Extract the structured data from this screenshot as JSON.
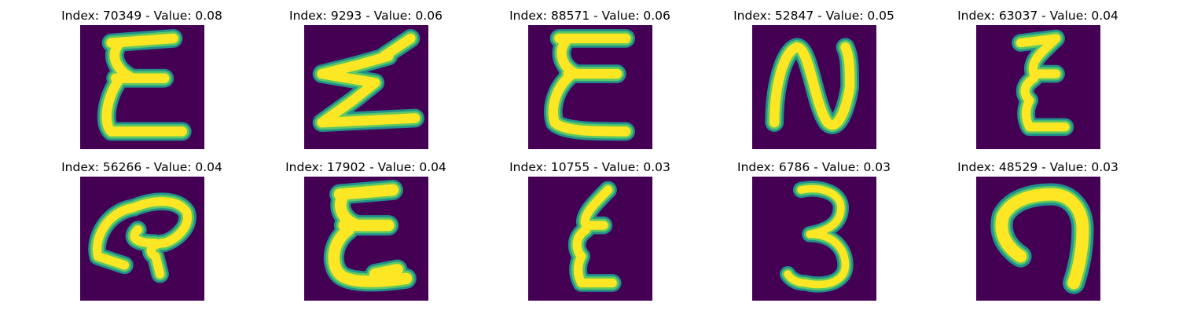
{
  "colors": {
    "background": "#440154",
    "stroke_outer": "#21918c",
    "stroke_mid": "#5ec962",
    "stroke_inner": "#fde725"
  },
  "panels": [
    {
      "title": "Index: 70349 - Value: 0.08",
      "glyph": "epsilon-tall-glyph"
    },
    {
      "title": "Index: 9293 - Value: 0.06",
      "glyph": "zigzag-z-glyph"
    },
    {
      "title": "Index: 88571 - Value: 0.06",
      "glyph": "epsilon-tall-glyph"
    },
    {
      "title": "Index: 52847 - Value: 0.05",
      "glyph": "letter-n-glyph"
    },
    {
      "title": "Index: 63037 - Value: 0.04",
      "glyph": "epsilon-narrow-glyph"
    },
    {
      "title": "Index: 56266 - Value: 0.04",
      "glyph": "loop-q-glyph"
    },
    {
      "title": "Index: 17902 - Value: 0.04",
      "glyph": "epsilon-tall-glyph"
    },
    {
      "title": "Index: 10755 - Value: 0.03",
      "glyph": "epsilon-narrow-glyph"
    },
    {
      "title": "Index: 6786 - Value: 0.03",
      "glyph": "digit-three-glyph"
    },
    {
      "title": "Index: 48529 - Value: 0.03",
      "glyph": "arch-glyph"
    }
  ]
}
